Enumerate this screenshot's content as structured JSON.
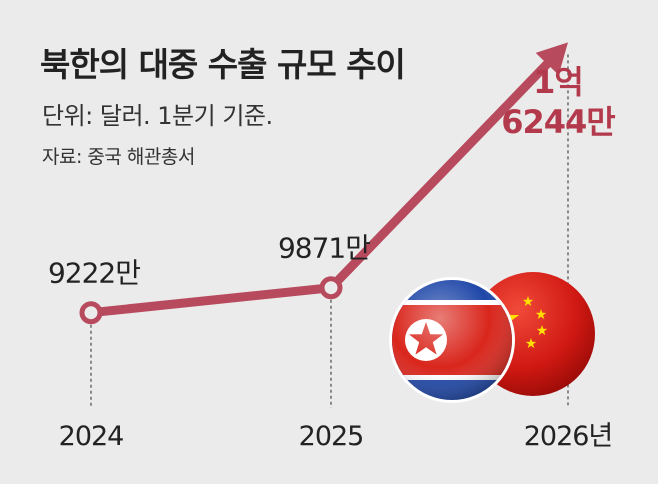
{
  "header": {
    "title": "북한의 대중 수출 규모 추이",
    "unit": "단위: 달러. 1분기 기준.",
    "source": "자료: 중국 해관총서"
  },
  "colors": {
    "line": "#b84a5e",
    "callout": "#b33a4c",
    "text": "#222222",
    "background": "#ebebeb"
  },
  "chart_data": {
    "type": "line",
    "title": "북한의 대중 수출 규모 추이",
    "subtitle": "단위: 달러. 1분기 기준.",
    "categories": [
      "2024",
      "2025",
      "2026년"
    ],
    "values": [
      92220000,
      98710000,
      162440000
    ],
    "value_labels": [
      "9222만",
      "9871만",
      "1억 6244만"
    ],
    "highlight_label_lines": [
      "1억",
      "6244만"
    ],
    "last_point_style": "arrow",
    "grid": false,
    "legend": "none"
  },
  "decoration": {
    "icons": [
      "north-korea-flag-icon",
      "china-flag-icon"
    ]
  }
}
